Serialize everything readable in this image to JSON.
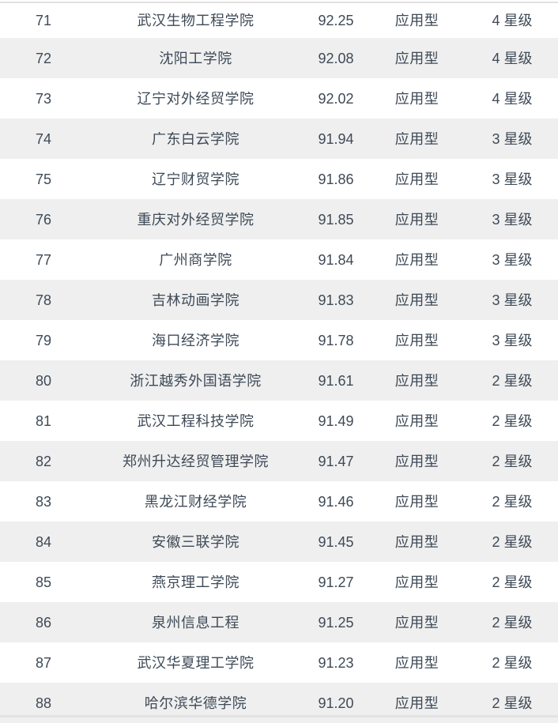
{
  "colors": {
    "row_bg": "#ffffff",
    "row_alt_bg": "#efefef",
    "text": "#3e4a57",
    "top_line": "#e1e1e1",
    "bottom_line": "#e3e3e3"
  },
  "chart_data": {
    "type": "table",
    "columns": [
      "rank",
      "university_name",
      "score",
      "education_type",
      "star_level"
    ],
    "rows": [
      {
        "rank": "71",
        "name": "武汉生物工程学院",
        "score": "92.25",
        "type": "应用型",
        "star": "4 星级"
      },
      {
        "rank": "72",
        "name": "沈阳工学院",
        "score": "92.08",
        "type": "应用型",
        "star": "4 星级"
      },
      {
        "rank": "73",
        "name": "辽宁对外经贸学院",
        "score": "92.02",
        "type": "应用型",
        "star": "4 星级"
      },
      {
        "rank": "74",
        "name": "广东白云学院",
        "score": "91.94",
        "type": "应用型",
        "star": "3 星级"
      },
      {
        "rank": "75",
        "name": "辽宁财贸学院",
        "score": "91.86",
        "type": "应用型",
        "star": "3 星级"
      },
      {
        "rank": "76",
        "name": "重庆对外经贸学院",
        "score": "91.85",
        "type": "应用型",
        "star": "3 星级"
      },
      {
        "rank": "77",
        "name": "广州商学院",
        "score": "91.84",
        "type": "应用型",
        "star": "3 星级"
      },
      {
        "rank": "78",
        "name": "吉林动画学院",
        "score": "91.83",
        "type": "应用型",
        "star": "3 星级"
      },
      {
        "rank": "79",
        "name": "海口经济学院",
        "score": "91.78",
        "type": "应用型",
        "star": "3 星级"
      },
      {
        "rank": "80",
        "name": "浙江越秀外国语学院",
        "score": "91.61",
        "type": "应用型",
        "star": "2 星级"
      },
      {
        "rank": "81",
        "name": "武汉工程科技学院",
        "score": "91.49",
        "type": "应用型",
        "star": "2 星级"
      },
      {
        "rank": "82",
        "name": "郑州升达经贸管理学院",
        "score": "91.47",
        "type": "应用型",
        "star": "2 星级"
      },
      {
        "rank": "83",
        "name": "黑龙江财经学院",
        "score": "91.46",
        "type": "应用型",
        "star": "2 星级"
      },
      {
        "rank": "84",
        "name": "安徽三联学院",
        "score": "91.45",
        "type": "应用型",
        "star": "2 星级"
      },
      {
        "rank": "85",
        "name": "燕京理工学院",
        "score": "91.27",
        "type": "应用型",
        "star": "2 星级"
      },
      {
        "rank": "86",
        "name": "泉州信息工程",
        "score": "91.25",
        "type": "应用型",
        "star": "2 星级"
      },
      {
        "rank": "87",
        "name": "武汉华夏理工学院",
        "score": "91.23",
        "type": "应用型",
        "star": "2 星级"
      },
      {
        "rank": "88",
        "name": "哈尔滨华德学院",
        "score": "91.20",
        "type": "应用型",
        "star": "2 星级"
      }
    ]
  }
}
